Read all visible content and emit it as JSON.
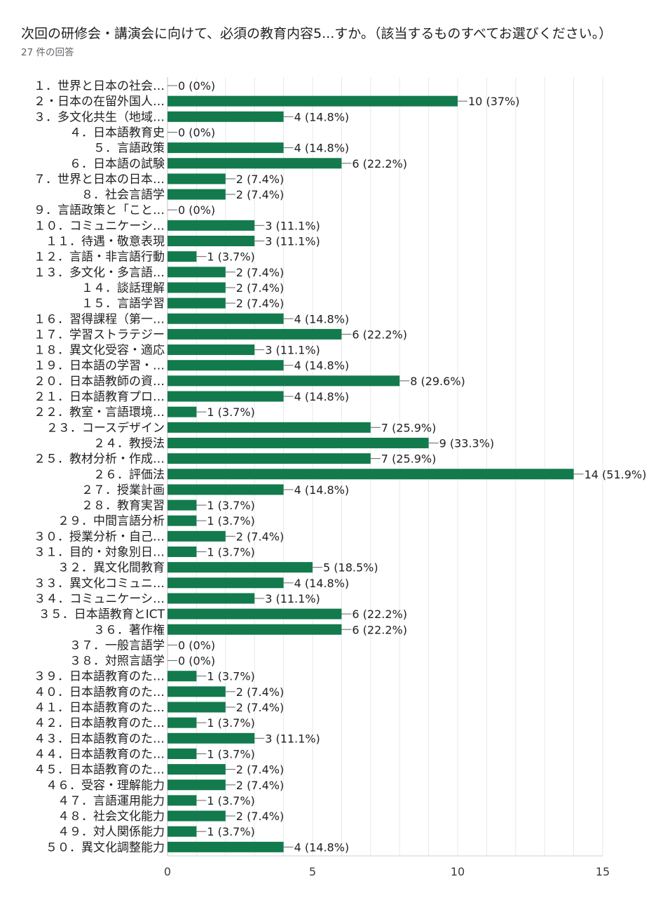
{
  "header": {
    "question": "次回の研修会・講演会に向けて、必須の教育内容5...すか。（該当するものすべてお選びください。）",
    "responses": "27 件の回答"
  },
  "colors": {
    "bar": "#137a4d",
    "grid": "#e8e8e8",
    "axis": "#cfcfcf",
    "label": "#202124",
    "tick": "#3c3c3c"
  },
  "chart_data": {
    "type": "bar",
    "orientation": "horizontal",
    "xlim": [
      0,
      15
    ],
    "xticks": [
      0,
      5,
      10,
      15
    ],
    "grid": true,
    "categories": [
      "１．世界と日本の社会…",
      "２・日本の在留外国人…",
      "３．多文化共生（地域…",
      "４．日本語教育史",
      "５．言語政策",
      "６．日本語の試験",
      "７．世界と日本の日本…",
      "８．社会言語学",
      "９．言語政策と「こと…",
      "１０．コミュニケーシ…",
      "１１．待遇・敬意表現",
      "１２．言語・非言語行動",
      "１３．多文化・多言語…",
      "１４．談話理解",
      "１５．言語学習",
      "１６．習得課程（第一…",
      "１７．学習ストラテジー",
      "１８．異文化受容・適応",
      "１９．日本語の学習・…",
      "２０．日本語教師の資…",
      "２１．日本語教育プロ…",
      "２２．教室・言語環境…",
      "２３．コースデザイン",
      "２４．教授法",
      "２５．教材分析・作成…",
      "２６．評価法",
      "２７．授業計画",
      "２８．教育実習",
      "２９．中間言語分析",
      "３０．授業分析・自己…",
      "３１．目的・対象別日…",
      "３２．異文化間教育",
      "３３．異文化コミュニ…",
      "３４．コミュニケーシ…",
      "３５．日本語教育とICT",
      "３６．著作権",
      "３７．一般言語学",
      "３８．対照言語学",
      "３９．日本語教育のた…",
      "４０．日本語教育のた…",
      "４１．日本語教育のた…",
      "４２．日本語教育のた…",
      "４３．日本語教育のた…",
      "４４．日本語教育のた…",
      "４５．日本語教育のた…",
      "４６．受容・理解能力",
      "４７．言語運用能力",
      "４８．社会文化能力",
      "４９．対人関係能力",
      "５０．異文化調整能力"
    ],
    "values": [
      0,
      10,
      4,
      0,
      4,
      6,
      2,
      2,
      0,
      3,
      3,
      1,
      2,
      2,
      2,
      4,
      6,
      3,
      4,
      8,
      4,
      1,
      7,
      9,
      7,
      14,
      4,
      1,
      1,
      2,
      1,
      5,
      4,
      3,
      6,
      6,
      0,
      0,
      1,
      2,
      2,
      1,
      3,
      1,
      2,
      2,
      1,
      2,
      1,
      4
    ],
    "data_labels": [
      "0 (0%)",
      "10 (37%)",
      "4 (14.8%)",
      "0 (0%)",
      "4 (14.8%)",
      "6 (22.2%)",
      "2 (7.4%)",
      "2 (7.4%)",
      "0 (0%)",
      "3 (11.1%)",
      "3 (11.1%)",
      "1 (3.7%)",
      "2 (7.4%)",
      "2 (7.4%)",
      "2 (7.4%)",
      "4 (14.8%)",
      "6 (22.2%)",
      "3 (11.1%)",
      "4 (14.8%)",
      "8 (29.6%)",
      "4 (14.8%)",
      "1 (3.7%)",
      "7 (25.9%)",
      "9 (33.3%)",
      "7 (25.9%)",
      "14 (51.9%)",
      "4 (14.8%)",
      "1 (3.7%)",
      "1 (3.7%)",
      "2 (7.4%)",
      "1 (3.7%)",
      "5 (18.5%)",
      "4 (14.8%)",
      "3 (11.1%)",
      "6 (22.2%)",
      "6 (22.2%)",
      "0 (0%)",
      "0 (0%)",
      "1 (3.7%)",
      "2 (7.4%)",
      "2 (7.4%)",
      "1 (3.7%)",
      "3 (11.1%)",
      "1 (3.7%)",
      "2 (7.4%)",
      "2 (7.4%)",
      "1 (3.7%)",
      "2 (7.4%)",
      "1 (3.7%)",
      "4 (14.8%)"
    ]
  }
}
